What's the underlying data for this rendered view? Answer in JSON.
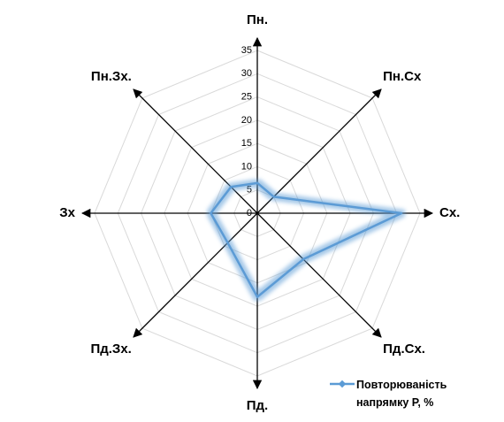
{
  "chart_data": {
    "type": "radar",
    "categories": [
      "Пн.",
      "Пн.Сх",
      "Сх.",
      "Пд.Сх.",
      "Пд.",
      "Пд.Зх.",
      "Зх",
      "Пн.Зх."
    ],
    "series": [
      {
        "name": "Повторюваність напрямку Р, %",
        "color": "#5b9bd5",
        "values": [
          6.5,
          5,
          31,
          14,
          18,
          9,
          10,
          8
        ]
      }
    ],
    "ylim": [
      0,
      35
    ],
    "yticks": [
      0,
      5,
      10,
      15,
      20,
      25,
      30,
      35
    ],
    "grid": true,
    "legend": "bottom-right"
  }
}
